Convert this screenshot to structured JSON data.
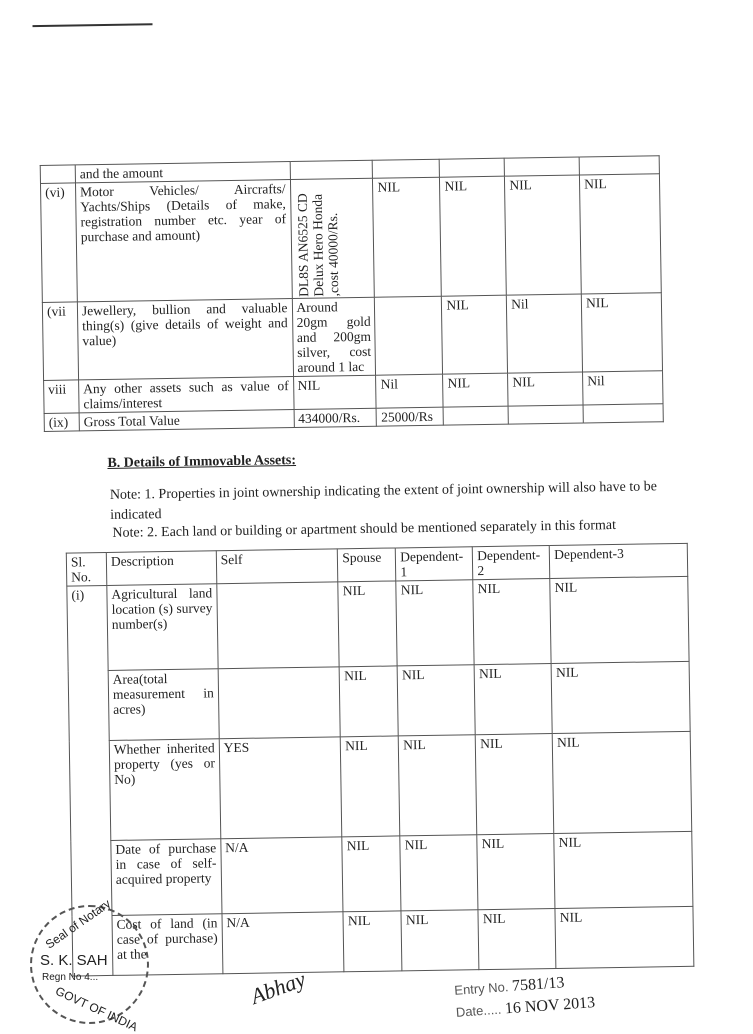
{
  "movable_table": {
    "rows": [
      {
        "no": "",
        "desc": "and the amount",
        "cells": [
          "",
          "",
          "",
          "",
          "",
          ""
        ]
      },
      {
        "no": "(vi)",
        "desc": "Motor Vehicles/ Aircrafts/ Yachts/Ships (Details of make, registration number etc. year of purchase and amount)",
        "self": "DL8S AN6525 CD Delux Hero Honda ,cost 40000/Rs.",
        "cells": [
          "NIL",
          "NIL",
          "NIL",
          "NIL"
        ]
      },
      {
        "no": "(vii",
        "desc": "Jewellery, bullion and valuable thing(s) (give details of weight and value)",
        "self": "Around 20gm gold and 200gm silver, cost around 1 lac",
        "cells": [
          "",
          "NIL",
          "Nil",
          "NIL"
        ]
      },
      {
        "no": "viii",
        "desc": "Any other assets such as value of claims/interest",
        "self": "NIL",
        "cells": [
          "Nil",
          "NIL",
          "NIL",
          "Nil"
        ]
      },
      {
        "no": "(ix)",
        "desc": "Gross Total Value",
        "self": "434000/Rs.",
        "cells": [
          "25000/Rs",
          "",
          "",
          ""
        ]
      }
    ]
  },
  "section_b": {
    "title": "B.  Details of Immovable Assets:",
    "note1": "Note: 1. Properties in joint ownership indicating the extent of joint ownership will also have to be indicated",
    "note2": "Note: 2. Each land or building or apartment should be mentioned separately in this format"
  },
  "immovable_table": {
    "headers": [
      "Sl. No.",
      "Description",
      "Self",
      "Spouse",
      "Dependent-1",
      "Dependent-2",
      "Dependent-3"
    ],
    "sl": "(i)",
    "rows": [
      {
        "desc": "Agricultural land location (s) survey number(s)",
        "cells": [
          "",
          "NIL",
          "NIL",
          "NIL",
          "NIL"
        ]
      },
      {
        "desc": "Area(total measurement in acres)",
        "cells": [
          "",
          "NIL",
          "NIL",
          "NIL",
          "NIL"
        ]
      },
      {
        "desc": "Whether inherited property (yes or No)",
        "cells": [
          "YES",
          "NIL",
          "NIL",
          "NIL",
          "NIL"
        ]
      },
      {
        "desc": "Date of purchase in case of self-acquired property",
        "cells": [
          "N/A",
          "NIL",
          "NIL",
          "NIL",
          "NIL"
        ]
      },
      {
        "desc": "Cost of land (in case of purchase) at the",
        "cells": [
          "N/A",
          "NIL",
          "NIL",
          "NIL",
          "NIL"
        ]
      }
    ]
  },
  "seal": {
    "top": "Seal of Notary",
    "name": "S. K. SAH",
    "regn": "Regn No 4...",
    "bottom": "GOVT OF INDIA"
  },
  "signature": "Abhay",
  "entry": {
    "label": "Entry No.",
    "number": "7581/13",
    "date_label": "Date",
    "date": "16 NOV 2013"
  }
}
